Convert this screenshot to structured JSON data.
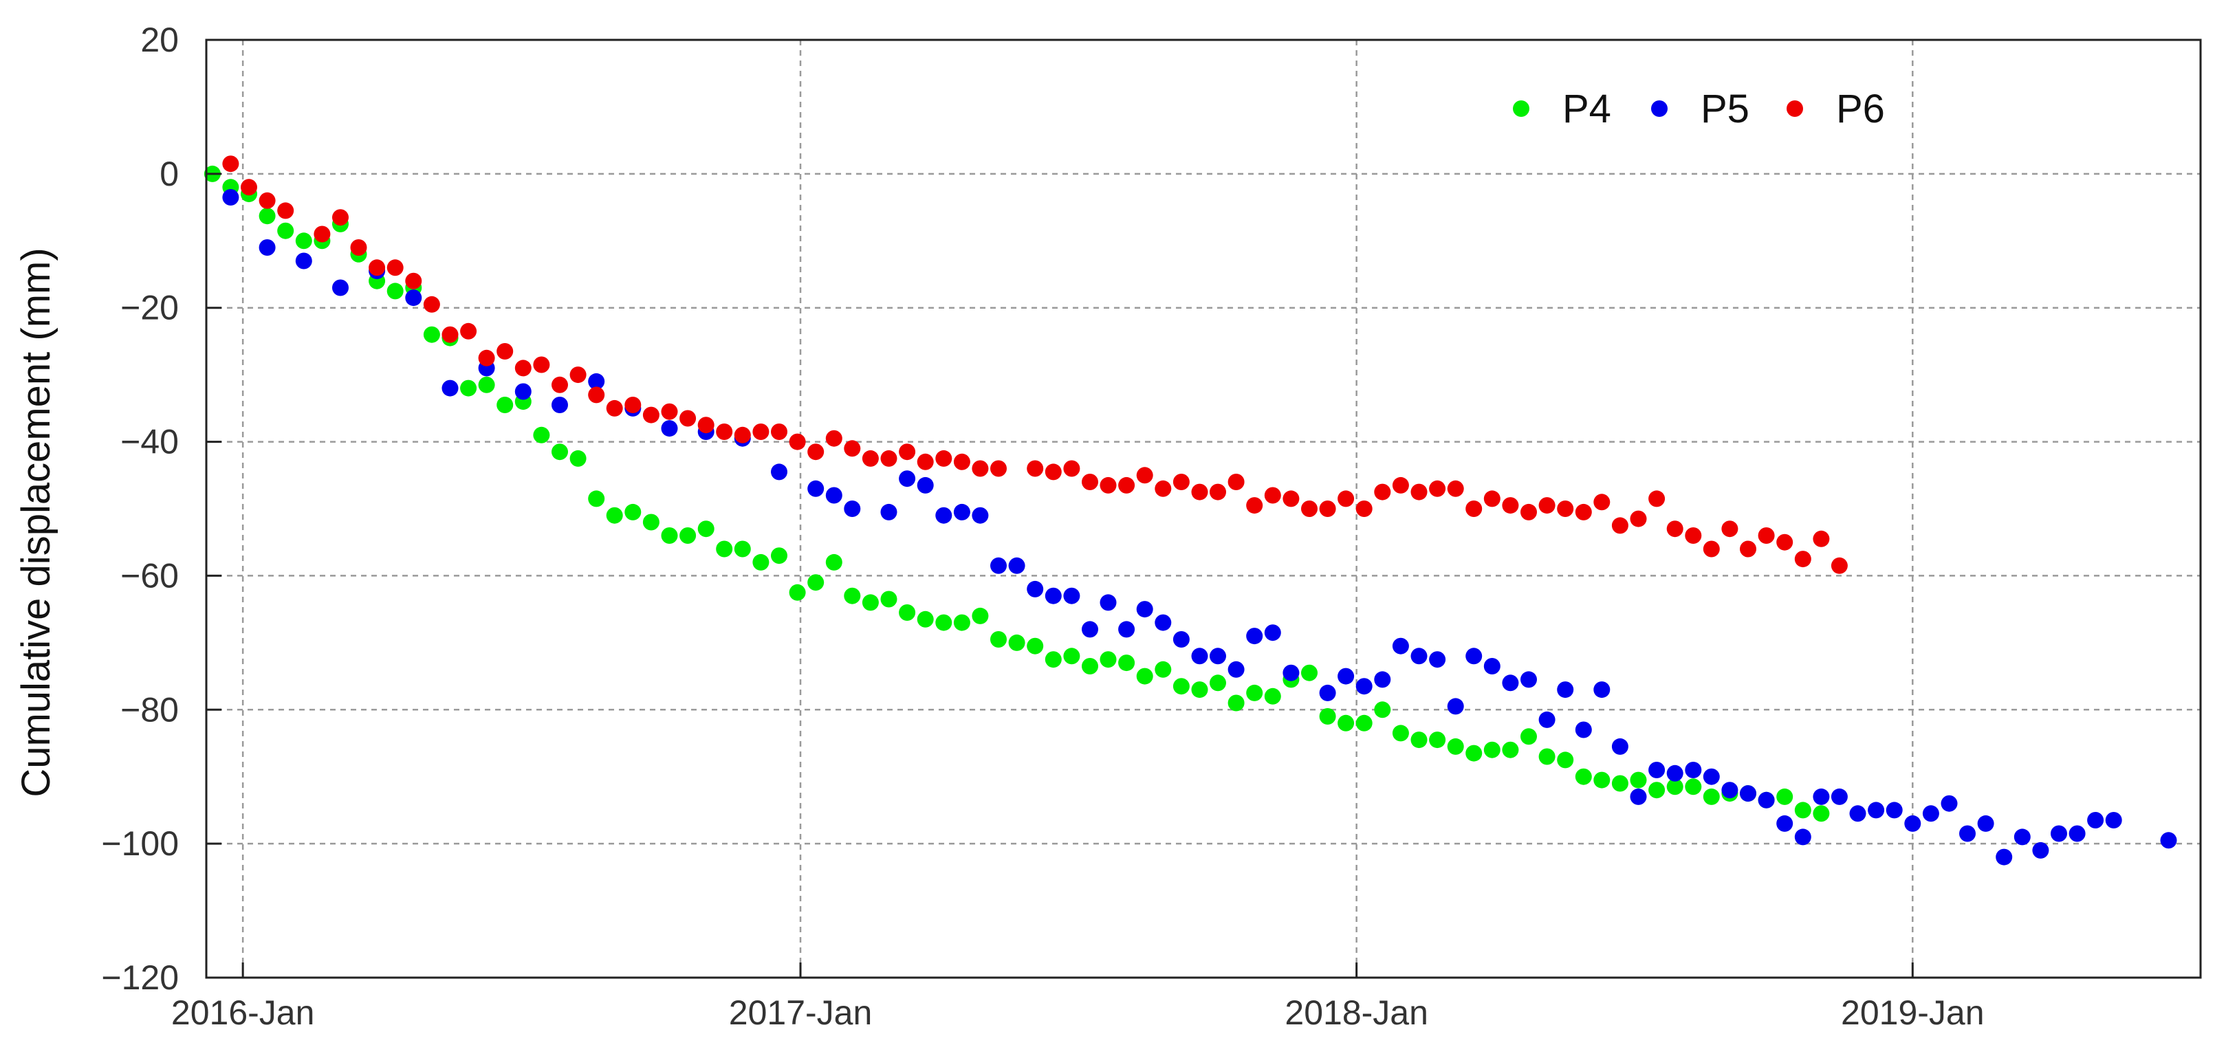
{
  "chart_data": {
    "type": "scatter",
    "title": "",
    "xlabel": "",
    "ylabel": "Cumulative displacement (mm)",
    "x_axis": {
      "kind": "date",
      "range": [
        "2015-12-08",
        "2019-07-09"
      ],
      "ticks": [
        {
          "date": "2016-01-01",
          "label": "2016-Jan"
        },
        {
          "date": "2017-01-01",
          "label": "2017-Jan"
        },
        {
          "date": "2018-01-01",
          "label": "2018-Jan"
        },
        {
          "date": "2019-01-01",
          "label": "2019-Jan"
        }
      ]
    },
    "ylim": [
      -120,
      20
    ],
    "yticks": [
      20,
      0,
      -20,
      -40,
      -60,
      -80,
      -100,
      -120
    ],
    "ytick_labels": [
      "20",
      "0",
      "−20",
      "−40",
      "−60",
      "−80",
      "−100",
      "−120"
    ],
    "grid": true,
    "legend_position": "top-right",
    "series": [
      {
        "name": "P4",
        "color": "#00ee00",
        "points": [
          [
            "2015-12-12",
            0
          ],
          [
            "2015-12-24",
            -2
          ],
          [
            "2016-01-05",
            -3
          ],
          [
            "2016-01-17",
            -6.3
          ],
          [
            "2016-01-29",
            -8.5
          ],
          [
            "2016-02-10",
            -10
          ],
          [
            "2016-02-22",
            -10
          ],
          [
            "2016-03-05",
            -7.5
          ],
          [
            "2016-03-17",
            -12
          ],
          [
            "2016-03-29",
            -16
          ],
          [
            "2016-04-10",
            -17.5
          ],
          [
            "2016-04-22",
            -17
          ],
          [
            "2016-05-04",
            -24
          ],
          [
            "2016-05-16",
            -24.5
          ],
          [
            "2016-05-28",
            -32
          ],
          [
            "2016-06-09",
            -31.5
          ],
          [
            "2016-06-21",
            -34.5
          ],
          [
            "2016-07-03",
            -34
          ],
          [
            "2016-07-15",
            -39
          ],
          [
            "2016-07-27",
            -41.5
          ],
          [
            "2016-08-08",
            -42.5
          ],
          [
            "2016-08-20",
            -48.5
          ],
          [
            "2016-09-01",
            -51
          ],
          [
            "2016-09-13",
            -50.5
          ],
          [
            "2016-09-25",
            -52
          ],
          [
            "2016-10-07",
            -54
          ],
          [
            "2016-10-19",
            -54
          ],
          [
            "2016-10-31",
            -53
          ],
          [
            "2016-11-12",
            -56
          ],
          [
            "2016-11-24",
            -56
          ],
          [
            "2016-12-06",
            -58
          ],
          [
            "2016-12-18",
            -57
          ],
          [
            "2016-12-30",
            -62.5
          ],
          [
            "2017-01-11",
            -61
          ],
          [
            "2017-01-23",
            -58
          ],
          [
            "2017-02-04",
            -63
          ],
          [
            "2017-02-16",
            -64
          ],
          [
            "2017-02-28",
            -63.5
          ],
          [
            "2017-03-12",
            -65.5
          ],
          [
            "2017-03-24",
            -66.5
          ],
          [
            "2017-04-05",
            -67
          ],
          [
            "2017-04-17",
            -67
          ],
          [
            "2017-04-29",
            -66
          ],
          [
            "2017-05-11",
            -69.5
          ],
          [
            "2017-05-23",
            -70
          ],
          [
            "2017-06-04",
            -70.5
          ],
          [
            "2017-06-16",
            -72.5
          ],
          [
            "2017-06-28",
            -72
          ],
          [
            "2017-07-10",
            -73.5
          ],
          [
            "2017-07-22",
            -72.5
          ],
          [
            "2017-08-03",
            -73
          ],
          [
            "2017-08-15",
            -75
          ],
          [
            "2017-08-27",
            -74
          ],
          [
            "2017-09-08",
            -76.5
          ],
          [
            "2017-09-20",
            -77
          ],
          [
            "2017-10-02",
            -76
          ],
          [
            "2017-10-14",
            -79
          ],
          [
            "2017-10-26",
            -77.5
          ],
          [
            "2017-11-07",
            -78
          ],
          [
            "2017-11-19",
            -75.5
          ],
          [
            "2017-12-01",
            -74.5
          ],
          [
            "2017-12-13",
            -81
          ],
          [
            "2017-12-25",
            -82
          ],
          [
            "2018-01-06",
            -82
          ],
          [
            "2018-01-18",
            -80
          ],
          [
            "2018-01-30",
            -83.5
          ],
          [
            "2018-02-11",
            -84.5
          ],
          [
            "2018-02-23",
            -84.5
          ],
          [
            "2018-03-07",
            -85.5
          ],
          [
            "2018-03-19",
            -86.5
          ],
          [
            "2018-03-31",
            -86
          ],
          [
            "2018-04-12",
            -86
          ],
          [
            "2018-04-24",
            -84
          ],
          [
            "2018-05-06",
            -87
          ],
          [
            "2018-05-18",
            -87.5
          ],
          [
            "2018-05-30",
            -90
          ],
          [
            "2018-06-11",
            -90.5
          ],
          [
            "2018-06-23",
            -91
          ],
          [
            "2018-07-05",
            -90.5
          ],
          [
            "2018-07-17",
            -92
          ],
          [
            "2018-07-29",
            -91.5
          ],
          [
            "2018-08-10",
            -91.5
          ],
          [
            "2018-08-22",
            -93
          ],
          [
            "2018-09-03",
            -92.5
          ],
          [
            "2018-09-15",
            -92.5
          ],
          [
            "2018-09-27",
            -93.5
          ],
          [
            "2018-10-09",
            -93
          ],
          [
            "2018-10-21",
            -95
          ],
          [
            "2018-11-02",
            -95.5
          ]
        ]
      },
      {
        "name": "P5",
        "color": "#0000ee",
        "points": [
          [
            "2015-12-24",
            -3.5
          ],
          [
            "2016-01-17",
            -11
          ],
          [
            "2016-02-10",
            -13
          ],
          [
            "2016-03-05",
            -17
          ],
          [
            "2016-03-29",
            -14.5
          ],
          [
            "2016-04-22",
            -18.5
          ],
          [
            "2016-05-16",
            -32
          ],
          [
            "2016-06-09",
            -29
          ],
          [
            "2016-07-03",
            -32.5
          ],
          [
            "2016-07-27",
            -34.5
          ],
          [
            "2016-08-20",
            -31
          ],
          [
            "2016-09-13",
            -35
          ],
          [
            "2016-10-07",
            -38
          ],
          [
            "2016-10-31",
            -38.5
          ],
          [
            "2016-11-24",
            -39.5
          ],
          [
            "2016-12-18",
            -44.5
          ],
          [
            "2017-01-11",
            -47
          ],
          [
            "2017-01-23",
            -48
          ],
          [
            "2017-02-04",
            -50
          ],
          [
            "2017-02-28",
            -50.5
          ],
          [
            "2017-03-12",
            -45.5
          ],
          [
            "2017-03-24",
            -46.5
          ],
          [
            "2017-04-05",
            -51
          ],
          [
            "2017-04-17",
            -50.5
          ],
          [
            "2017-04-29",
            -51
          ],
          [
            "2017-05-11",
            -58.5
          ],
          [
            "2017-05-23",
            -58.5
          ],
          [
            "2017-06-04",
            -62
          ],
          [
            "2017-06-16",
            -63
          ],
          [
            "2017-06-28",
            -63
          ],
          [
            "2017-07-10",
            -68
          ],
          [
            "2017-07-22",
            -64
          ],
          [
            "2017-08-03",
            -68
          ],
          [
            "2017-08-15",
            -65
          ],
          [
            "2017-08-27",
            -67
          ],
          [
            "2017-09-08",
            -69.5
          ],
          [
            "2017-09-20",
            -72
          ],
          [
            "2017-10-02",
            -72
          ],
          [
            "2017-10-14",
            -74
          ],
          [
            "2017-10-26",
            -69
          ],
          [
            "2017-11-07",
            -68.5
          ],
          [
            "2017-11-19",
            -74.5
          ],
          [
            "2017-12-13",
            -77.5
          ],
          [
            "2017-12-25",
            -75
          ],
          [
            "2018-01-06",
            -76.5
          ],
          [
            "2018-01-18",
            -75.5
          ],
          [
            "2018-01-30",
            -70.5
          ],
          [
            "2018-02-11",
            -72
          ],
          [
            "2018-02-23",
            -72.5
          ],
          [
            "2018-03-07",
            -79.5
          ],
          [
            "2018-03-19",
            -72
          ],
          [
            "2018-03-31",
            -73.5
          ],
          [
            "2018-04-12",
            -76
          ],
          [
            "2018-04-24",
            -75.5
          ],
          [
            "2018-05-06",
            -81.5
          ],
          [
            "2018-05-18",
            -77
          ],
          [
            "2018-05-30",
            -83
          ],
          [
            "2018-06-11",
            -77
          ],
          [
            "2018-06-23",
            -85.5
          ],
          [
            "2018-07-05",
            -93
          ],
          [
            "2018-07-17",
            -89
          ],
          [
            "2018-07-29",
            -89.5
          ],
          [
            "2018-08-10",
            -89
          ],
          [
            "2018-08-22",
            -90
          ],
          [
            "2018-09-03",
            -92
          ],
          [
            "2018-09-15",
            -92.5
          ],
          [
            "2018-09-27",
            -93.5
          ],
          [
            "2018-10-09",
            -97
          ],
          [
            "2018-10-21",
            -99
          ],
          [
            "2018-11-02",
            -93
          ],
          [
            "2018-11-14",
            -93
          ],
          [
            "2018-11-26",
            -95.5
          ],
          [
            "2018-12-08",
            -95
          ],
          [
            "2018-12-20",
            -95
          ],
          [
            "2019-01-01",
            -97
          ],
          [
            "2019-01-13",
            -95.5
          ],
          [
            "2019-01-25",
            -94
          ],
          [
            "2019-02-06",
            -98.5
          ],
          [
            "2019-02-18",
            -97
          ],
          [
            "2019-03-02",
            -102
          ],
          [
            "2019-03-14",
            -99
          ],
          [
            "2019-03-26",
            -101
          ],
          [
            "2019-04-07",
            -98.5
          ],
          [
            "2019-04-19",
            -98.5
          ],
          [
            "2019-05-01",
            -96.5
          ],
          [
            "2019-05-13",
            -96.5
          ],
          [
            "2019-06-18",
            -99.5
          ]
        ]
      },
      {
        "name": "P6",
        "color": "#ee0000",
        "points": [
          [
            "2015-12-24",
            1.5
          ],
          [
            "2016-01-05",
            -2
          ],
          [
            "2016-01-17",
            -4
          ],
          [
            "2016-01-29",
            -5.5
          ],
          [
            "2016-02-22",
            -9
          ],
          [
            "2016-03-05",
            -6.5
          ],
          [
            "2016-03-17",
            -11
          ],
          [
            "2016-03-29",
            -14
          ],
          [
            "2016-04-10",
            -14
          ],
          [
            "2016-04-22",
            -16
          ],
          [
            "2016-05-04",
            -19.5
          ],
          [
            "2016-05-16",
            -24
          ],
          [
            "2016-05-28",
            -23.5
          ],
          [
            "2016-06-09",
            -27.5
          ],
          [
            "2016-06-21",
            -26.5
          ],
          [
            "2016-07-03",
            -29
          ],
          [
            "2016-07-15",
            -28.5
          ],
          [
            "2016-07-27",
            -31.5
          ],
          [
            "2016-08-08",
            -30
          ],
          [
            "2016-08-20",
            -33
          ],
          [
            "2016-09-01",
            -35
          ],
          [
            "2016-09-13",
            -34.5
          ],
          [
            "2016-09-25",
            -36
          ],
          [
            "2016-10-07",
            -35.5
          ],
          [
            "2016-10-19",
            -36.5
          ],
          [
            "2016-10-31",
            -37.5
          ],
          [
            "2016-11-12",
            -38.5
          ],
          [
            "2016-11-24",
            -39
          ],
          [
            "2016-12-06",
            -38.5
          ],
          [
            "2016-12-18",
            -38.5
          ],
          [
            "2016-12-30",
            -40
          ],
          [
            "2017-01-11",
            -41.5
          ],
          [
            "2017-01-23",
            -39.5
          ],
          [
            "2017-02-04",
            -41
          ],
          [
            "2017-02-16",
            -42.5
          ],
          [
            "2017-02-28",
            -42.5
          ],
          [
            "2017-03-12",
            -41.5
          ],
          [
            "2017-03-24",
            -43
          ],
          [
            "2017-04-05",
            -42.5
          ],
          [
            "2017-04-17",
            -43
          ],
          [
            "2017-04-29",
            -44
          ],
          [
            "2017-05-11",
            -44
          ],
          [
            "2017-06-04",
            -44
          ],
          [
            "2017-06-16",
            -44.5
          ],
          [
            "2017-06-28",
            -44
          ],
          [
            "2017-07-10",
            -46
          ],
          [
            "2017-07-22",
            -46.5
          ],
          [
            "2017-08-03",
            -46.5
          ],
          [
            "2017-08-15",
            -45
          ],
          [
            "2017-08-27",
            -47
          ],
          [
            "2017-09-08",
            -46
          ],
          [
            "2017-09-20",
            -47.5
          ],
          [
            "2017-10-02",
            -47.5
          ],
          [
            "2017-10-14",
            -46
          ],
          [
            "2017-10-26",
            -49.5
          ],
          [
            "2017-11-07",
            -48
          ],
          [
            "2017-11-19",
            -48.5
          ],
          [
            "2017-12-01",
            -50
          ],
          [
            "2017-12-13",
            -50
          ],
          [
            "2017-12-25",
            -48.5
          ],
          [
            "2018-01-06",
            -50
          ],
          [
            "2018-01-18",
            -47.5
          ],
          [
            "2018-01-30",
            -46.5
          ],
          [
            "2018-02-11",
            -47.5
          ],
          [
            "2018-02-23",
            -47
          ],
          [
            "2018-03-07",
            -47
          ],
          [
            "2018-03-19",
            -50
          ],
          [
            "2018-03-31",
            -48.5
          ],
          [
            "2018-04-12",
            -49.5
          ],
          [
            "2018-04-24",
            -50.5
          ],
          [
            "2018-05-06",
            -49.5
          ],
          [
            "2018-05-18",
            -50
          ],
          [
            "2018-05-30",
            -50.5
          ],
          [
            "2018-06-11",
            -49
          ],
          [
            "2018-06-23",
            -52.5
          ],
          [
            "2018-07-05",
            -51.5
          ],
          [
            "2018-07-17",
            -48.5
          ],
          [
            "2018-07-29",
            -53
          ],
          [
            "2018-08-10",
            -54
          ],
          [
            "2018-08-22",
            -56
          ],
          [
            "2018-09-03",
            -53
          ],
          [
            "2018-09-15",
            -56
          ],
          [
            "2018-09-27",
            -54
          ],
          [
            "2018-10-09",
            -55
          ],
          [
            "2018-10-21",
            -57.5
          ],
          [
            "2018-11-02",
            -54.5
          ],
          [
            "2018-11-14",
            -58.5
          ]
        ]
      }
    ]
  }
}
